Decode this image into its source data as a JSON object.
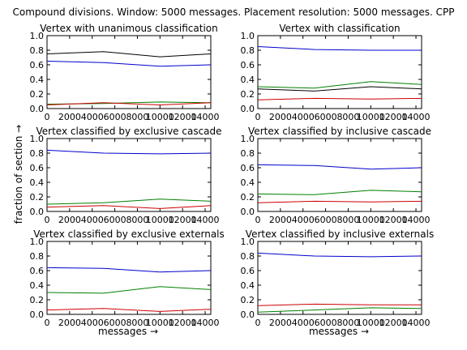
{
  "figure": {
    "title": "Compound divisions. Window: 5000 messages. Placement resolution: 5000 messages. CPP",
    "xlabel": "messages →",
    "ylabel": "fraction of section →"
  },
  "colors": {
    "black": "#000000",
    "blue": "#0000cc",
    "green": "#008000",
    "red": "#cc0000"
  },
  "chart_data": [
    {
      "type": "line",
      "title": "Vertex with unanimous classification",
      "x": [
        0,
        5000,
        10000,
        14500
      ],
      "xticks": [
        "0",
        "2000",
        "4000",
        "6000",
        "8000",
        "10000",
        "12000",
        "14000"
      ],
      "yticks": [
        "0.0",
        "0.2",
        "0.4",
        "0.6",
        "0.8",
        "1.0"
      ],
      "xlim": [
        0,
        14500
      ],
      "ylim": [
        0,
        1.0
      ],
      "series": [
        {
          "color": "black",
          "values": [
            0.75,
            0.78,
            0.71,
            0.75
          ]
        },
        {
          "color": "blue",
          "values": [
            0.65,
            0.63,
            0.58,
            0.6
          ]
        },
        {
          "color": "green",
          "values": [
            0.06,
            0.07,
            0.09,
            0.08
          ]
        },
        {
          "color": "red",
          "values": [
            0.05,
            0.08,
            0.05,
            0.08
          ]
        }
      ]
    },
    {
      "type": "line",
      "title": "Vertex with classification",
      "x": [
        0,
        5000,
        10000,
        14500
      ],
      "xticks": [
        "0",
        "2000",
        "4000",
        "6000",
        "8000",
        "10000",
        "12000",
        "14000"
      ],
      "yticks": [
        "0.0",
        "0.2",
        "0.4",
        "0.6",
        "0.8",
        "1.0"
      ],
      "xlim": [
        0,
        14500
      ],
      "ylim": [
        0,
        1.0
      ],
      "series": [
        {
          "color": "blue",
          "values": [
            0.85,
            0.81,
            0.8,
            0.8
          ]
        },
        {
          "color": "green",
          "values": [
            0.3,
            0.28,
            0.37,
            0.33
          ]
        },
        {
          "color": "black",
          "values": [
            0.27,
            0.24,
            0.3,
            0.27
          ]
        },
        {
          "color": "red",
          "values": [
            0.12,
            0.14,
            0.13,
            0.14
          ]
        }
      ]
    },
    {
      "type": "line",
      "title": "Vertex classified by exclusive cascade",
      "x": [
        0,
        5000,
        10000,
        14500
      ],
      "xticks": [
        "0",
        "2000",
        "4000",
        "6000",
        "8000",
        "10000",
        "12000",
        "14000"
      ],
      "yticks": [
        "0.0",
        "0.2",
        "0.4",
        "0.6",
        "0.8",
        "1.0"
      ],
      "xlim": [
        0,
        14500
      ],
      "ylim": [
        0,
        1.0
      ],
      "series": [
        {
          "color": "blue",
          "values": [
            0.84,
            0.8,
            0.79,
            0.8
          ]
        },
        {
          "color": "green",
          "values": [
            0.1,
            0.12,
            0.17,
            0.14
          ]
        },
        {
          "color": "red",
          "values": [
            0.06,
            0.08,
            0.04,
            0.08
          ]
        }
      ]
    },
    {
      "type": "line",
      "title": "Vertex classified by inclusive cascade",
      "x": [
        0,
        5000,
        10000,
        14500
      ],
      "xticks": [
        "0",
        "2000",
        "4000",
        "6000",
        "8000",
        "10000",
        "12000",
        "14000"
      ],
      "yticks": [
        "0.0",
        "0.2",
        "0.4",
        "0.6",
        "0.8",
        "1.0"
      ],
      "xlim": [
        0,
        14500
      ],
      "ylim": [
        0,
        1.0
      ],
      "series": [
        {
          "color": "blue",
          "values": [
            0.64,
            0.63,
            0.58,
            0.6
          ]
        },
        {
          "color": "green",
          "values": [
            0.24,
            0.23,
            0.29,
            0.27
          ]
        },
        {
          "color": "red",
          "values": [
            0.12,
            0.14,
            0.13,
            0.14
          ]
        }
      ]
    },
    {
      "type": "line",
      "title": "Vertex classified by exclusive externals",
      "x": [
        0,
        5000,
        10000,
        14500
      ],
      "xticks": [
        "0",
        "2000",
        "4000",
        "6000",
        "8000",
        "10000",
        "12000",
        "14000"
      ],
      "yticks": [
        "0.0",
        "0.2",
        "0.4",
        "0.6",
        "0.8",
        "1.0"
      ],
      "xlim": [
        0,
        14500
      ],
      "ylim": [
        0,
        1.0
      ],
      "series": [
        {
          "color": "blue",
          "values": [
            0.64,
            0.63,
            0.58,
            0.6
          ]
        },
        {
          "color": "green",
          "values": [
            0.3,
            0.29,
            0.38,
            0.34
          ]
        },
        {
          "color": "red",
          "values": [
            0.06,
            0.08,
            0.04,
            0.07
          ]
        }
      ]
    },
    {
      "type": "line",
      "title": "Vertex classified by inclusive externals",
      "x": [
        0,
        5000,
        10000,
        14500
      ],
      "xticks": [
        "0",
        "2000",
        "4000",
        "6000",
        "8000",
        "10000",
        "12000",
        "14000"
      ],
      "yticks": [
        "0.0",
        "0.2",
        "0.4",
        "0.6",
        "0.8",
        "1.0"
      ],
      "xlim": [
        0,
        14500
      ],
      "ylim": [
        0,
        1.0
      ],
      "series": [
        {
          "color": "blue",
          "values": [
            0.84,
            0.8,
            0.79,
            0.8
          ]
        },
        {
          "color": "red",
          "values": [
            0.12,
            0.14,
            0.13,
            0.13
          ]
        },
        {
          "color": "green",
          "values": [
            0.03,
            0.06,
            0.09,
            0.08
          ]
        }
      ]
    }
  ]
}
